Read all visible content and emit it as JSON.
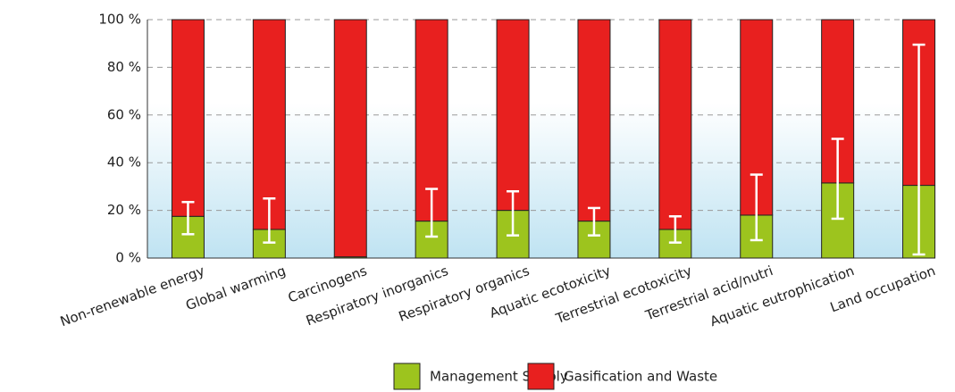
{
  "chart_data": {
    "type": "bar",
    "stacked": true,
    "categories": [
      "Non-renewable energy",
      "Global warming",
      "Carcinogens",
      "Respiratory inorganics",
      "Respiratory organics",
      "Aquatic ecotoxicity",
      "Terrestrial ecotoxicity",
      "Terrestrial acid/nutri",
      "Aquatic eutrophication",
      "Land occupation"
    ],
    "series": [
      {
        "name": "Management Supply",
        "color": "#9dc41e",
        "values": [
          17.5,
          12,
          0.5,
          15.5,
          20,
          15.5,
          12,
          18,
          31.5,
          30.5
        ],
        "error_low": [
          10,
          6.5,
          null,
          9,
          9.5,
          9.5,
          6.5,
          7.5,
          16.5,
          1.5
        ],
        "error_high": [
          23.5,
          25,
          null,
          29,
          28,
          21,
          17.5,
          35,
          50,
          89.5
        ]
      },
      {
        "name": "Gasification and Waste",
        "color": "#e8201f",
        "values": [
          82.5,
          88,
          99.5,
          84.5,
          80,
          84.5,
          88,
          82,
          68.5,
          69.5
        ]
      }
    ],
    "ylim": [
      0,
      100
    ],
    "yticks": [
      {
        "value": 0,
        "label": "0 %"
      },
      {
        "value": 20,
        "label": "20 %"
      },
      {
        "value": 40,
        "label": "40 %"
      },
      {
        "value": 60,
        "label": "60 %"
      },
      {
        "value": 80,
        "label": "80 %"
      },
      {
        "value": 100,
        "label": "100 %"
      }
    ],
    "grid": true,
    "legend": "bottom"
  }
}
